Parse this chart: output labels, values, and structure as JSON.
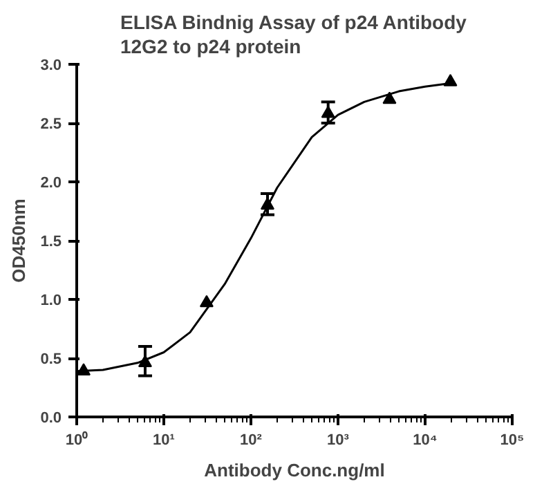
{
  "chart_data": {
    "type": "scatter",
    "title": "ELISA Bindnig Assay of p24 Antibody\n12G2 to p24 protein",
    "xlabel": "Antibody Conc.ng/ml",
    "ylabel": "OD450nm",
    "log": "x",
    "grid": false,
    "xlim": [
      1,
      100000
    ],
    "ylim": [
      0,
      3.0
    ],
    "xticks": [
      {
        "value": 1,
        "label": "10⁰"
      },
      {
        "value": 10,
        "label": "10¹"
      },
      {
        "value": 100,
        "label": "10²"
      },
      {
        "value": 1000,
        "label": "10³"
      },
      {
        "value": 10000,
        "label": "10⁴"
      },
      {
        "value": 100000,
        "label": "10⁵"
      }
    ],
    "yticks": [
      {
        "value": 0,
        "label": "0.0"
      },
      {
        "value": 0.5,
        "label": "0.5"
      },
      {
        "value": 1.0,
        "label": "1.0"
      },
      {
        "value": 1.5,
        "label": "1.5"
      },
      {
        "value": 2.0,
        "label": "2.0"
      },
      {
        "value": 2.5,
        "label": "2.5"
      },
      {
        "value": 3.0,
        "label": "3.0"
      }
    ],
    "series": [
      {
        "color": "#000000",
        "marker": "triangle",
        "x": [
          1.2,
          6.1,
          31,
          155,
          770,
          3900,
          19500
        ],
        "values": [
          0.39,
          0.46,
          0.97,
          1.8,
          2.58,
          2.7,
          2.85
        ],
        "errors": [
          null,
          [
            0.35,
            0.6
          ],
          null,
          [
            1.72,
            1.9
          ],
          [
            2.5,
            2.68
          ],
          null,
          null
        ]
      },
      {
        "type": "line",
        "color": "#000000",
        "line_style": "solid",
        "x": [
          1,
          2,
          5,
          10,
          20,
          50,
          100,
          200,
          500,
          1000,
          2000,
          5000,
          10000,
          20000
        ],
        "values": [
          0.39,
          0.4,
          0.46,
          0.55,
          0.72,
          1.13,
          1.52,
          1.95,
          2.38,
          2.57,
          2.68,
          2.77,
          2.81,
          2.84
        ]
      }
    ]
  }
}
